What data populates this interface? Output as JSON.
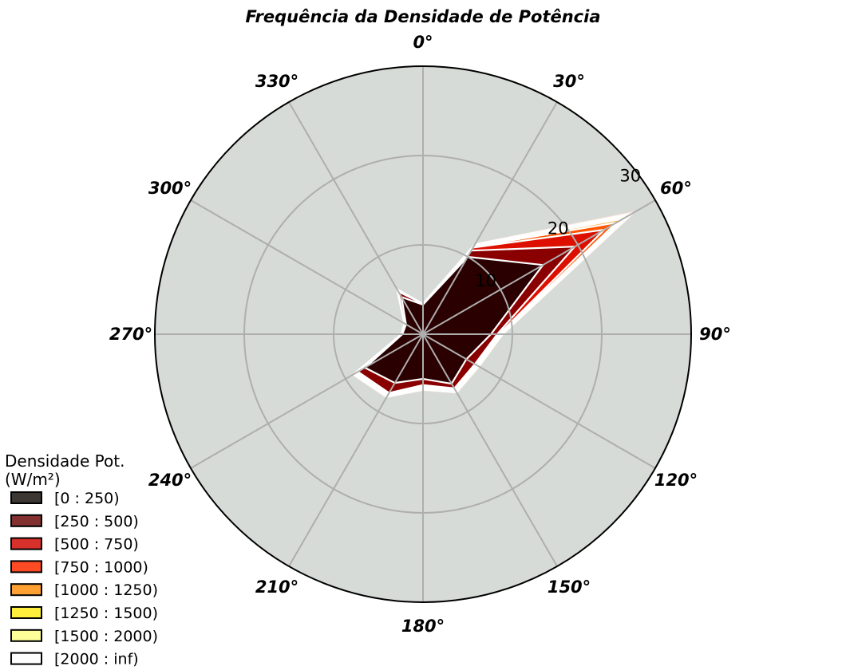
{
  "chart_data": {
    "type": "polar-stacked-area",
    "title": "Frequência da Densidade de Potência",
    "angle_labels": [
      "0°",
      "30°",
      "60°",
      "90°",
      "120°",
      "150°",
      "180°",
      "210°",
      "240°",
      "270°",
      "300°",
      "330°"
    ],
    "directions_deg": [
      0,
      30,
      60,
      90,
      120,
      150,
      180,
      210,
      240,
      270,
      300,
      330
    ],
    "radial_ticks": [
      10,
      20,
      30
    ],
    "radial_tick_labels": [
      "10",
      "20",
      "30"
    ],
    "rlim": [
      0,
      30
    ],
    "grid": true,
    "legend_title": "Densidade Pot.\n(W/m²)",
    "legend_title_lines": [
      "Densidade Pot.",
      "(W/m²)"
    ],
    "legend_placement": "bottom-left",
    "series": [
      {
        "name": "[0 : 250)",
        "cumulative": [
          3.3,
          10.0,
          15.5,
          7.6,
          5.6,
          6.4,
          5.0,
          6.3,
          7.5,
          2.3,
          2.2,
          4.8
        ],
        "color": "#2a0000",
        "legend_color": "#3c3732"
      },
      {
        "name": "[250 : 500)",
        "cumulative": [
          3.4,
          10.8,
          19.6,
          8.3,
          6.7,
          7.0,
          5.7,
          7.6,
          8.4,
          2.4,
          2.4,
          5.5
        ],
        "color": "#8a0000",
        "legend_color": "#833030"
      },
      {
        "name": "[500 : 750)",
        "cumulative": [
          3.4,
          11.2,
          23.4,
          8.5,
          6.8,
          7.1,
          5.8,
          7.7,
          8.6,
          2.4,
          2.4,
          5.6
        ],
        "color": "#dd1000",
        "legend_color": "#d8302a"
      },
      {
        "name": "[750 : 1000)",
        "cumulative": [
          3.4,
          11.3,
          25.0,
          8.6,
          6.9,
          7.2,
          5.9,
          7.8,
          8.7,
          2.4,
          2.4,
          5.7
        ],
        "color": "#ff5500",
        "legend_color": "#ff4b24"
      },
      {
        "name": "[1000 : 1250)",
        "cumulative": [
          3.4,
          11.4,
          25.8,
          8.7,
          7.0,
          7.3,
          6.0,
          7.9,
          8.8,
          2.4,
          2.4,
          5.7
        ],
        "color": "#ffa11e",
        "legend_color": "#ffa032"
      },
      {
        "name": "[1250 : 1500)",
        "cumulative": [
          3.4,
          11.5,
          26.4,
          8.8,
          7.1,
          7.4,
          6.1,
          8.0,
          8.9,
          2.4,
          2.4,
          5.8
        ],
        "color": "#ffe22c",
        "legend_color": "#ffee3c"
      },
      {
        "name": "[1500 : 2000)",
        "cumulative": [
          3.4,
          11.6,
          27.0,
          8.9,
          7.2,
          7.5,
          6.2,
          8.1,
          9.0,
          2.4,
          2.4,
          5.8
        ],
        "color": "#ffffa0",
        "legend_color": "#ffff9a"
      },
      {
        "name": "[2000 : inf)",
        "cumulative": [
          3.4,
          11.7,
          27.5,
          9.0,
          7.3,
          7.6,
          6.3,
          8.2,
          9.1,
          2.4,
          2.4,
          5.8
        ],
        "color": "#fff4ec",
        "legend_color": "#ffffff"
      }
    ],
    "colors": {
      "plot_background": "#d7dbd7",
      "grid": "#aeaeae",
      "outline": "#000000",
      "series_edge": "#ffffff"
    }
  }
}
